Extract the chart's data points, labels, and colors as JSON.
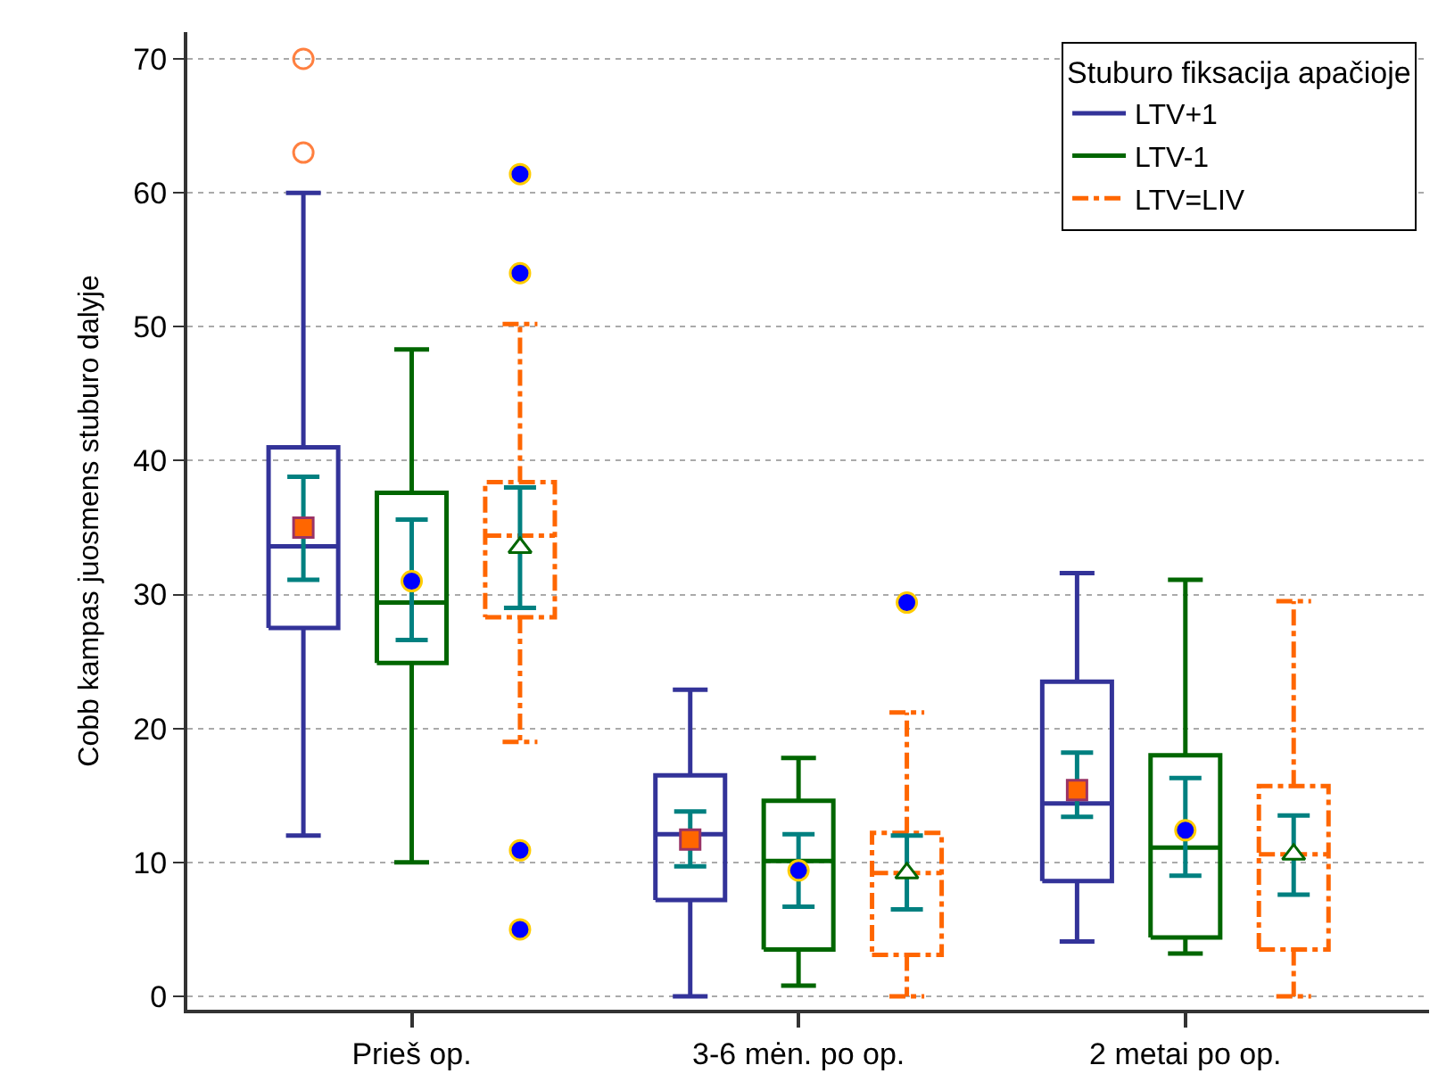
{
  "chart_data": {
    "type": "box",
    "ylabel": "Cobb kampas juosmens stuburo dalyje",
    "legend_title": "Stuburo fiksacija apačioje",
    "categories": [
      "Prieš op.",
      "3-6 mėn. po op.",
      "2 metai po op."
    ],
    "ylim": [
      -1,
      72
    ],
    "yticks": [
      0,
      10,
      20,
      30,
      40,
      50,
      60,
      70
    ],
    "grid": "y",
    "legend": "top right",
    "series": [
      {
        "name": "LTV+1",
        "color": "#333399",
        "line_style": "solid",
        "boxes": [
          {
            "low": 12,
            "q1": 27.5,
            "median": 33.6,
            "q3": 41,
            "high": 60,
            "outliers": [
              63,
              70
            ]
          },
          {
            "low": 0,
            "q1": 7.2,
            "median": 12.1,
            "q3": 16.5,
            "high": 22.9
          },
          {
            "low": 4.1,
            "q1": 8.6,
            "median": 14.4,
            "q3": 23.5,
            "high": 31.6
          }
        ]
      },
      {
        "name": "LTV-1",
        "color": "#006600",
        "line_style": "solid",
        "boxes": [
          {
            "low": 10,
            "q1": 24.9,
            "median": 29.4,
            "q3": 37.6,
            "high": 48.3
          },
          {
            "low": 0.8,
            "q1": 3.5,
            "median": 10.1,
            "q3": 14.6,
            "high": 17.8
          },
          {
            "low": 3.2,
            "q1": 4.4,
            "median": 11.1,
            "q3": 18,
            "high": 31.1
          }
        ]
      },
      {
        "name": "LTV=LIV",
        "color": "#ff6600",
        "line_style": "dashdot",
        "boxes": [
          {
            "low": 19,
            "q1": 28.3,
            "median": 34.4,
            "q3": 38.4,
            "high": 50.2,
            "outliers": [
              5,
              10.9,
              54,
              61.4
            ]
          },
          {
            "low": 0,
            "q1": 3.1,
            "median": 9.2,
            "q3": 12.2,
            "high": 21.2,
            "outliers": [
              29.4
            ]
          },
          {
            "low": 0,
            "q1": 3.5,
            "median": 10.6,
            "q3": 15.7,
            "high": 29.5
          }
        ]
      },
      {
        "type": "scatter",
        "color": "#ff6600",
        "marker": "square",
        "values": [
          35,
          11.7,
          15.4
        ],
        "errors": [
          [
            31.1,
            38.8
          ],
          [
            9.7,
            13.8
          ],
          [
            13.4,
            18.2
          ]
        ]
      },
      {
        "type": "scatter",
        "color": "#0000ff",
        "marker": "circle",
        "values": [
          31,
          9.4,
          12.4
        ],
        "errors": [
          [
            26.6,
            35.6
          ],
          [
            6.7,
            12.1
          ],
          [
            9,
            16.3
          ]
        ]
      },
      {
        "type": "scatter",
        "color": "#ffffff",
        "marker": "triangle",
        "values": [
          33.5,
          9.2,
          10.6
        ],
        "errors": [
          [
            29,
            38
          ],
          [
            6.5,
            12
          ],
          [
            7.6,
            13.5
          ]
        ]
      }
    ]
  }
}
